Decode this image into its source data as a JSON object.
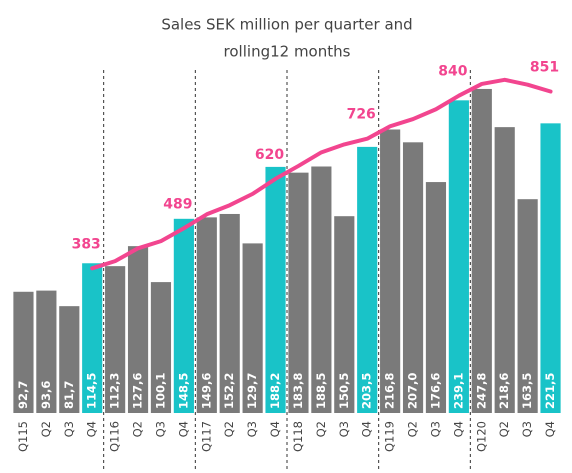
{
  "chart_data": {
    "type": "bar",
    "title_lines": [
      "Sales SEK million per quarter and",
      "rolling12 months"
    ],
    "categories": [
      "Q115",
      "Q2",
      "Q3",
      "Q4",
      "Q116",
      "Q2",
      "Q3",
      "Q4",
      "Q117",
      "Q2",
      "Q3",
      "Q4",
      "Q118",
      "Q2",
      "Q3",
      "Q4",
      "Q119",
      "Q2",
      "Q3",
      "Q4",
      "Q120",
      "Q2",
      "Q3",
      "Q4"
    ],
    "ylim": [
      0,
      260
    ],
    "y2lim": [
      0,
      900
    ],
    "series": [
      {
        "name": "Sales per quarter",
        "type": "bar",
        "color": "#7a7a7a",
        "highlight_color": "#19c3c8",
        "highlight_every": 4,
        "values": [
          92.7,
          93.6,
          81.7,
          114.5,
          112.3,
          127.6,
          100.1,
          148.5,
          149.6,
          152.2,
          129.7,
          188.2,
          183.8,
          188.5,
          150.5,
          203.5,
          216.8,
          207.0,
          176.6,
          239.1,
          247.8,
          218.6,
          163.5,
          221.5
        ],
        "value_labels": [
          "92,7",
          "93,6",
          "81,7",
          "114,5",
          "112,3",
          "127,6",
          "100,1",
          "148,5",
          "149,6",
          "152,2",
          "129,7",
          "188,2",
          "183,8",
          "188,5",
          "150,5",
          "203,5",
          "216,8",
          "207,0",
          "176,6",
          "239,1",
          "247,8",
          "218,6",
          "163,5",
          "221,5"
        ]
      },
      {
        "name": "Rolling 12 months",
        "type": "line",
        "axis": "y2",
        "color": "#f2458f",
        "values": [
          null,
          null,
          null,
          383,
          402,
          436,
          455,
          489,
          526,
          550,
          580,
          620,
          654,
          690,
          711,
          726,
          759,
          778,
          804,
          840,
          871,
          882,
          869,
          851
        ],
        "value_labels": [
          null,
          null,
          null,
          "383",
          null,
          null,
          null,
          "489",
          null,
          null,
          null,
          "620",
          null,
          null,
          null,
          "726",
          null,
          null,
          null,
          "840",
          null,
          null,
          null,
          "851"
        ]
      }
    ]
  }
}
